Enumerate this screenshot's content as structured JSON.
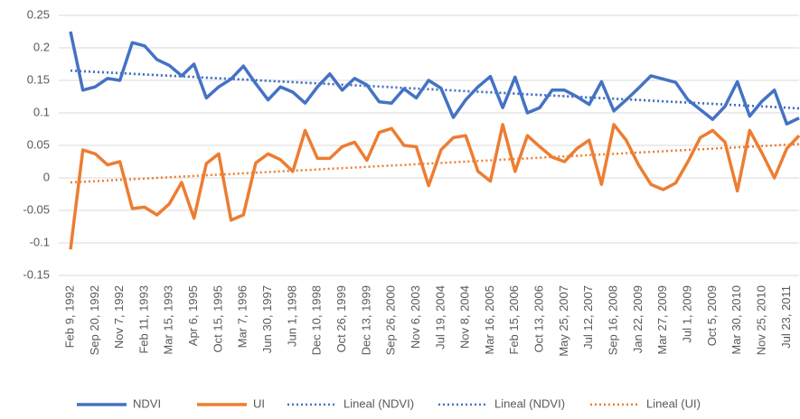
{
  "chart_data": {
    "type": "line",
    "categories": [
      "Feb 9, 1992",
      null,
      "Sep 20, 1992",
      null,
      "Nov 7, 1992",
      null,
      "Feb 11, 1993",
      null,
      "Mar 15, 1993",
      null,
      "Apr 6, 1995",
      null,
      "Oct 15, 1995",
      null,
      "Mar 7, 1996",
      null,
      "Jun 30, 1997",
      null,
      "Jun 1, 1998",
      null,
      "Dec 10, 1998",
      null,
      "Oct 26, 1999",
      null,
      "Dec 13, 1999",
      null,
      "Sep 26, 2000",
      null,
      "Nov 6, 2003",
      null,
      "Jul 19, 2004",
      null,
      "Nov 8, 2004",
      null,
      "Mar 16, 2005",
      null,
      "Feb 15, 2006",
      null,
      "Oct 13, 2006",
      null,
      "May 25, 2007",
      null,
      "Jul 12, 2007",
      null,
      "Sep 16, 2008",
      null,
      "Jan 22, 2009",
      null,
      "Mar 27, 2009",
      null,
      "Jul 1, 2009",
      null,
      "Oct 5, 2009",
      null,
      "Mar 30, 2010",
      null,
      "Nov 25, 2010",
      null,
      "Jul 23, 2011",
      null
    ],
    "series": [
      {
        "name": "NDVI",
        "color": "#4472c4",
        "values": [
          0.225,
          0.135,
          0.14,
          0.153,
          0.15,
          0.208,
          0.203,
          0.182,
          0.173,
          0.157,
          0.175,
          0.123,
          0.14,
          0.152,
          0.172,
          0.145,
          0.12,
          0.14,
          0.132,
          0.115,
          0.14,
          0.16,
          0.135,
          0.153,
          0.143,
          0.117,
          0.115,
          0.137,
          0.123,
          0.15,
          0.138,
          0.093,
          0.12,
          0.14,
          0.156,
          0.108,
          0.155,
          0.1,
          0.108,
          0.135,
          0.135,
          0.125,
          0.113,
          0.148,
          0.103,
          0.12,
          0.138,
          0.157,
          0.152,
          0.147,
          0.12,
          0.105,
          0.09,
          0.11,
          0.148,
          0.095,
          0.118,
          0.135,
          0.083,
          0.092
        ]
      },
      {
        "name": "UI",
        "color": "#ed7d31",
        "values": [
          -0.11,
          0.043,
          0.037,
          0.02,
          0.025,
          -0.047,
          -0.045,
          -0.057,
          -0.04,
          -0.007,
          -0.062,
          0.022,
          0.037,
          -0.065,
          -0.057,
          0.023,
          0.037,
          0.028,
          0.01,
          0.073,
          0.03,
          0.03,
          0.048,
          0.055,
          0.027,
          0.07,
          0.076,
          0.05,
          0.048,
          -0.012,
          0.043,
          0.062,
          0.065,
          0.01,
          -0.005,
          0.082,
          0.01,
          0.065,
          0.048,
          0.032,
          0.025,
          0.045,
          0.058,
          -0.01,
          0.082,
          0.058,
          0.02,
          -0.01,
          -0.018,
          -0.008,
          0.025,
          0.062,
          0.073,
          0.055,
          -0.02,
          0.073,
          0.038,
          0.0,
          0.045,
          0.065
        ]
      }
    ],
    "trendlines": [
      {
        "name": "Lineal (NDVI)",
        "color": "#4472c4",
        "values": [
          0.165,
          0.107
        ]
      },
      {
        "name": "Lineal (NDVI)",
        "color": "#4472c4",
        "values": [
          0.165,
          0.107
        ]
      },
      {
        "name": "Lineal (UI)",
        "color": "#ed7d31",
        "values": [
          -0.007,
          0.052
        ]
      }
    ],
    "ylim": [
      -0.15,
      0.25
    ],
    "yticks": [
      -0.15,
      -0.1,
      -0.05,
      0,
      0.05,
      0.1,
      0.15,
      0.2,
      0.25
    ],
    "grid": true,
    "legend": "bottom"
  }
}
